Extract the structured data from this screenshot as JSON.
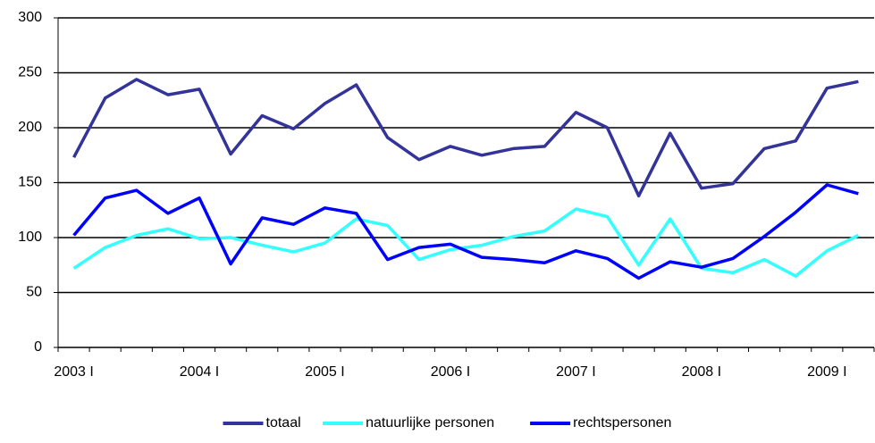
{
  "chart_data": {
    "type": "line",
    "categories": [
      "2003 I",
      null,
      null,
      null,
      "2004 I",
      null,
      null,
      null,
      "2005 I",
      null,
      null,
      null,
      "2006 I",
      null,
      null,
      null,
      "2007 I",
      null,
      null,
      null,
      "2008 I",
      null,
      null,
      null,
      "2009 I",
      null
    ],
    "series": [
      {
        "name": "totaal",
        "color": "#333399",
        "values": [
          173,
          227,
          244,
          230,
          235,
          176,
          211,
          199,
          222,
          239,
          191,
          171,
          183,
          175,
          181,
          183,
          214,
          200,
          138,
          195,
          145,
          149,
          181,
          188,
          236,
          242
        ]
      },
      {
        "name": "natuurlijke personen",
        "color": "#33ffff",
        "values": [
          72,
          91,
          102,
          108,
          99,
          100,
          93,
          87,
          95,
          117,
          111,
          80,
          89,
          93,
          101,
          106,
          126,
          119,
          75,
          117,
          72,
          68,
          80,
          65,
          88,
          102
        ]
      },
      {
        "name": "rechtspersonen",
        "color": "#0000ff",
        "values": [
          102,
          136,
          143,
          122,
          136,
          76,
          118,
          112,
          127,
          122,
          80,
          91,
          94,
          82,
          80,
          77,
          88,
          81,
          63,
          78,
          73,
          81,
          101,
          123,
          148,
          140
        ]
      }
    ],
    "ylim": [
      0,
      300
    ],
    "yticks": [
      0,
      50,
      100,
      150,
      200,
      250,
      300
    ],
    "grid": true,
    "legend": "bottom"
  }
}
